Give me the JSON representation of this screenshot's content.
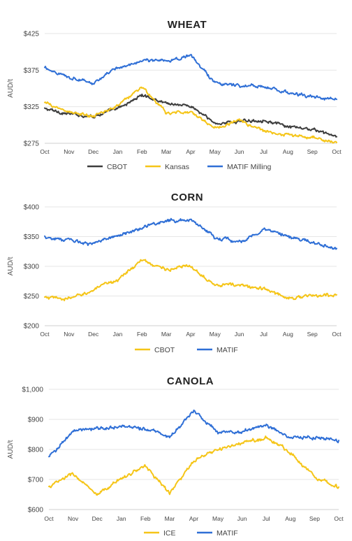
{
  "chart_data": [
    {
      "type": "line",
      "title": "WHEAT",
      "ylabel": "AUD/t",
      "yticks": [
        "$275",
        "$325",
        "$375",
        "$425"
      ],
      "ytick_values": [
        275,
        325,
        375,
        425
      ],
      "ylim": [
        275,
        425
      ],
      "xticks": [
        "Oct",
        "Nov",
        "Dec",
        "Jan",
        "Feb",
        "Mar",
        "Apr",
        "May",
        "Jun",
        "Jul",
        "Aug",
        "Sep",
        "Oct"
      ],
      "x": [
        "Oct",
        "Nov",
        "Dec",
        "Jan",
        "Feb",
        "Mar",
        "Apr",
        "May",
        "Jun",
        "Jul",
        "Aug",
        "Sep",
        "Oct"
      ],
      "grid": true,
      "legend": "bottom",
      "series": [
        {
          "name": "CBOT",
          "color": "#3d3d3d",
          "values": [
            322,
            315,
            312,
            322,
            341,
            330,
            326,
            302,
            305,
            307,
            297,
            294,
            284
          ]
        },
        {
          "name": "Kansas",
          "color": "#f5c518",
          "values": [
            330,
            318,
            311,
            327,
            352,
            316,
            318,
            296,
            306,
            292,
            286,
            283,
            276
          ]
        },
        {
          "name": "MATIF Milling",
          "color": "#2f6fd6",
          "values": [
            378,
            366,
            357,
            378,
            388,
            388,
            395,
            358,
            354,
            352,
            344,
            338,
            335
          ]
        }
      ]
    },
    {
      "type": "line",
      "title": "CORN",
      "ylabel": "AUD/t",
      "yticks": [
        "$200",
        "$250",
        "$300",
        "$350",
        "$400"
      ],
      "ytick_values": [
        200,
        250,
        300,
        350,
        400
      ],
      "ylim": [
        200,
        400
      ],
      "xticks": [
        "Oct",
        "Nov",
        "Dec",
        "Jan",
        "Feb",
        "Mar",
        "Apr",
        "May",
        "Jun",
        "Jul",
        "Aug",
        "Sep",
        "Oct"
      ],
      "x": [
        "Oct",
        "Nov",
        "Dec",
        "Jan",
        "Feb",
        "Mar",
        "Apr",
        "May",
        "Jun",
        "Jul",
        "Aug",
        "Sep",
        "Oct"
      ],
      "grid": true,
      "legend": "bottom",
      "series": [
        {
          "name": "CBOT",
          "color": "#f5c518",
          "values": [
            247,
            245,
            260,
            278,
            310,
            295,
            300,
            270,
            268,
            262,
            247,
            250,
            252
          ]
        },
        {
          "name": "MATIF",
          "color": "#2f6fd6",
          "values": [
            350,
            343,
            338,
            352,
            365,
            377,
            378,
            350,
            340,
            362,
            350,
            340,
            330
          ]
        }
      ]
    },
    {
      "type": "line",
      "title": "CANOLA",
      "ylabel": "AUD/t",
      "yticks": [
        "$600",
        "$700",
        "$800",
        "$900",
        "$1,000"
      ],
      "ytick_values": [
        600,
        700,
        800,
        900,
        1000
      ],
      "ylim": [
        600,
        1000
      ],
      "xticks": [
        "Oct",
        "Nov",
        "Dec",
        "Jan",
        "Feb",
        "Mar",
        "Apr",
        "May",
        "Jun",
        "Jul",
        "Aug",
        "Sep",
        "Oct"
      ],
      "x": [
        "Oct",
        "Nov",
        "Dec",
        "Jan",
        "Feb",
        "Mar",
        "Apr",
        "May",
        "Jun",
        "Jul",
        "Aug",
        "Sep",
        "Oct"
      ],
      "grid": true,
      "legend": "bottom",
      "series": [
        {
          "name": "ICE",
          "color": "#f5c518",
          "values": [
            675,
            720,
            645,
            705,
            745,
            655,
            760,
            800,
            820,
            840,
            790,
            710,
            675
          ]
        },
        {
          "name": "MATIF",
          "color": "#2f6fd6",
          "values": [
            775,
            860,
            870,
            875,
            870,
            840,
            930,
            860,
            860,
            880,
            840,
            840,
            830
          ]
        }
      ]
    }
  ]
}
